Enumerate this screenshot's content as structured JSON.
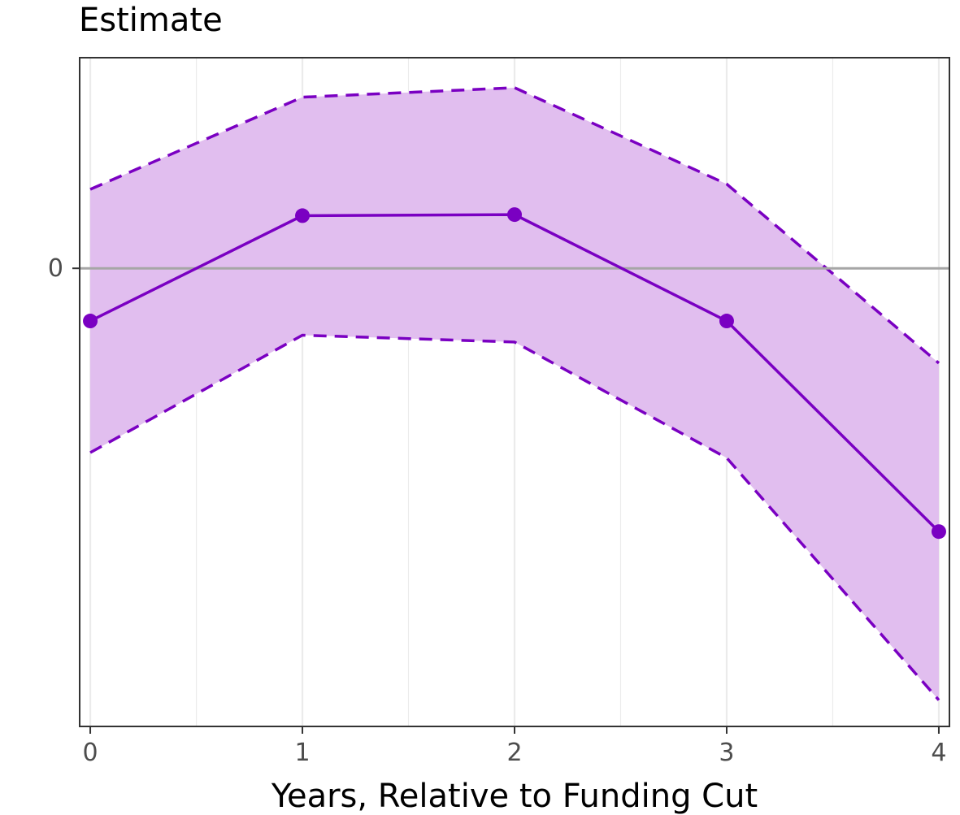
{
  "chart_data": {
    "type": "line",
    "ylabel": "Estimate",
    "xlabel": "Years, Relative to Funding Cut",
    "x": [
      0,
      1,
      2,
      3,
      4
    ],
    "xticks": [
      "0",
      "1",
      "2",
      "3",
      "4"
    ],
    "yticks": [
      {
        "value": 0,
        "label": "0"
      }
    ],
    "xlim": [
      -0.05,
      4.05
    ],
    "ylim": [
      -0.87,
      0.4
    ],
    "series": [
      {
        "values": [
          -0.1,
          0.1,
          0.102,
          -0.1,
          -0.5
        ],
        "lower": [
          -0.35,
          -0.127,
          -0.14,
          -0.36,
          -0.82
        ],
        "upper": [
          0.15,
          0.325,
          0.343,
          0.16,
          -0.18
        ]
      }
    ],
    "reference_line_y": 0,
    "grid": true,
    "colors": {
      "line": "#7A00C2",
      "ribbon": "#E1BEEF",
      "reference": "#a6a6a6",
      "grid": "#ebebeb",
      "border": "#333333"
    }
  }
}
